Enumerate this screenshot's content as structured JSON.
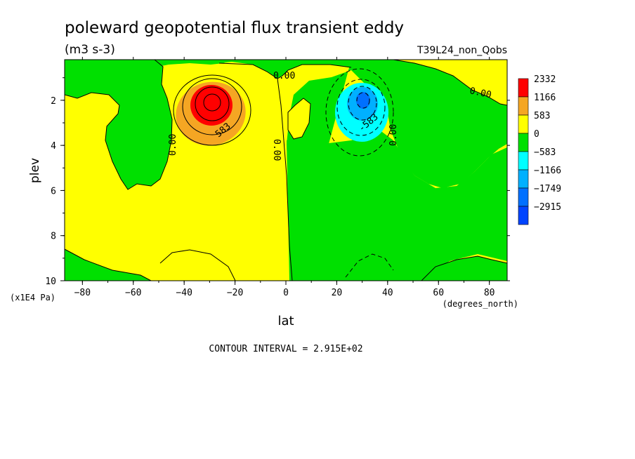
{
  "chart_data": {
    "type": "heatmap",
    "title": "poleward geopotential flux transient eddy",
    "units": "(m3 s-3)",
    "run_label": "T39L24_non_Qobs",
    "xlabel": "lat",
    "xunits": "(degrees_north)",
    "ylabel": "plev",
    "yunits": "(x1E4 Pa)",
    "xlim": [
      -87,
      87
    ],
    "ylim": [
      10,
      0.2
    ],
    "x_ticks": [
      -80,
      -60,
      -40,
      -20,
      0,
      20,
      40,
      60,
      80
    ],
    "y_ticks": [
      2,
      4,
      6,
      8,
      10
    ],
    "contour_interval_text": "CONTOUR INTERVAL = 2.915E+02",
    "contour_labels": [
      "0.00",
      "0.00",
      "0.00",
      "0.00",
      "0.00",
      "583",
      "-583"
    ],
    "legend": {
      "levels": [
        "2332",
        "1166",
        "583",
        "0",
        "-583",
        "-1166",
        "-1749",
        "-2915"
      ],
      "colors": [
        "#ff0000",
        "#f5a623",
        "#ffff00",
        "#00e000",
        "#00ffff",
        "#00b0ff",
        "#0070ff",
        "#0044ff"
      ]
    },
    "features": [
      {
        "lat": -30,
        "plev": 2.0,
        "value": 2332,
        "sign": "positive"
      },
      {
        "lat": 31,
        "plev": 2.0,
        "value": -2915,
        "sign": "negative"
      }
    ]
  }
}
